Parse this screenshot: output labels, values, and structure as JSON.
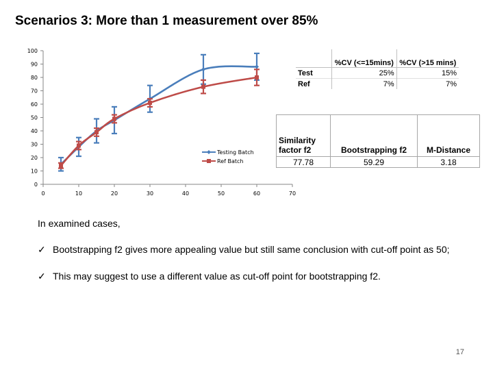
{
  "title": "Scenarios 3: More than 1 measurement over 85%",
  "chart_data": {
    "type": "line",
    "x": [
      5,
      10,
      15,
      20,
      30,
      45,
      60
    ],
    "series": [
      {
        "name": "Testing Batch",
        "color": "#4a7ebb",
        "values": [
          15,
          28,
          40,
          48,
          64,
          86,
          88
        ],
        "err": [
          5,
          7,
          9,
          10,
          10,
          11,
          10
        ]
      },
      {
        "name": "Ref Batch",
        "color": "#be4b48",
        "values": [
          14,
          29,
          39,
          49,
          61,
          73,
          80
        ],
        "err": [
          2,
          3,
          3,
          3,
          3,
          5,
          6
        ]
      }
    ],
    "xlim": [
      0,
      70
    ],
    "ylim": [
      0,
      100
    ],
    "xticks": [
      "0",
      "10",
      "20",
      "30",
      "40",
      "50",
      "60",
      "70"
    ],
    "yticks": [
      "0",
      "10",
      "20",
      "30",
      "40",
      "50",
      "60",
      "70",
      "80",
      "90",
      "100"
    ],
    "legend": "right-middle"
  },
  "cv_table": {
    "headers": [
      "%CV (<=15mins)",
      "%CV (>15 mins)"
    ],
    "rows": [
      {
        "label": "Test",
        "values": [
          "25%",
          "15%"
        ]
      },
      {
        "label": "Ref",
        "values": [
          "7%",
          "7%"
        ]
      }
    ]
  },
  "similarity_table": {
    "headers": [
      "Similarity factor f2",
      "Bootstrapping f2",
      "M-Distance"
    ],
    "values": [
      "77.78",
      "59.29",
      "3.18"
    ]
  },
  "body": {
    "intro": "In examined cases,",
    "bullets": [
      "Bootstrapping f2 gives more appealing value but still same conclusion with cut-off point as 50;",
      "This may suggest to use a different value as cut-off point for bootstrapping f2."
    ],
    "check_icon": "✓"
  },
  "page_number": "17"
}
